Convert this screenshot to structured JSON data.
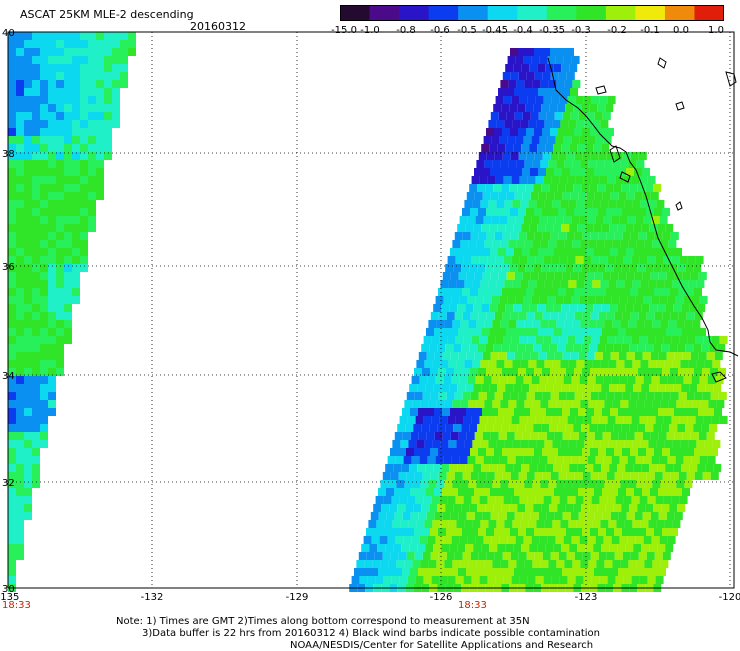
{
  "header": {
    "title": "ASCAT 25KM MLE-2 descending",
    "date": "20160312"
  },
  "colorbar": {
    "labels": [
      "-15.0",
      "-1.0",
      "-0.8",
      "-0.6",
      "-0.5",
      "-0.45",
      "-0.4",
      "-0.35",
      "-0.3",
      "-0.2",
      "-0.1",
      "0.0",
      "1.0"
    ],
    "colors": [
      "#240a30",
      "#4a0a8a",
      "#2a14c8",
      "#0c3cf0",
      "#0a90f0",
      "#0cd8f0",
      "#20f0c8",
      "#28f05a",
      "#30e428",
      "#9ef00a",
      "#f0ea0a",
      "#f08a0a",
      "#e01e0a"
    ]
  },
  "map": {
    "lon_ticks": [
      "-135",
      "-132",
      "-129",
      "-126",
      "-123",
      "-120"
    ],
    "lat_ticks": [
      "30",
      "32",
      "34",
      "36",
      "38",
      "40"
    ],
    "times": [
      "18:33",
      "18:33"
    ],
    "grid": "dotted"
  },
  "notes": [
    "Note: 1) Times are GMT 2)Times along bottom correspond to measurement at 35N",
    "3)Data buffer is 22 hrs from 20160312 4) Black wind barbs indicate possible contamination",
    "NOAA/NESDIS/Center for Satellite Applications and Research"
  ]
}
